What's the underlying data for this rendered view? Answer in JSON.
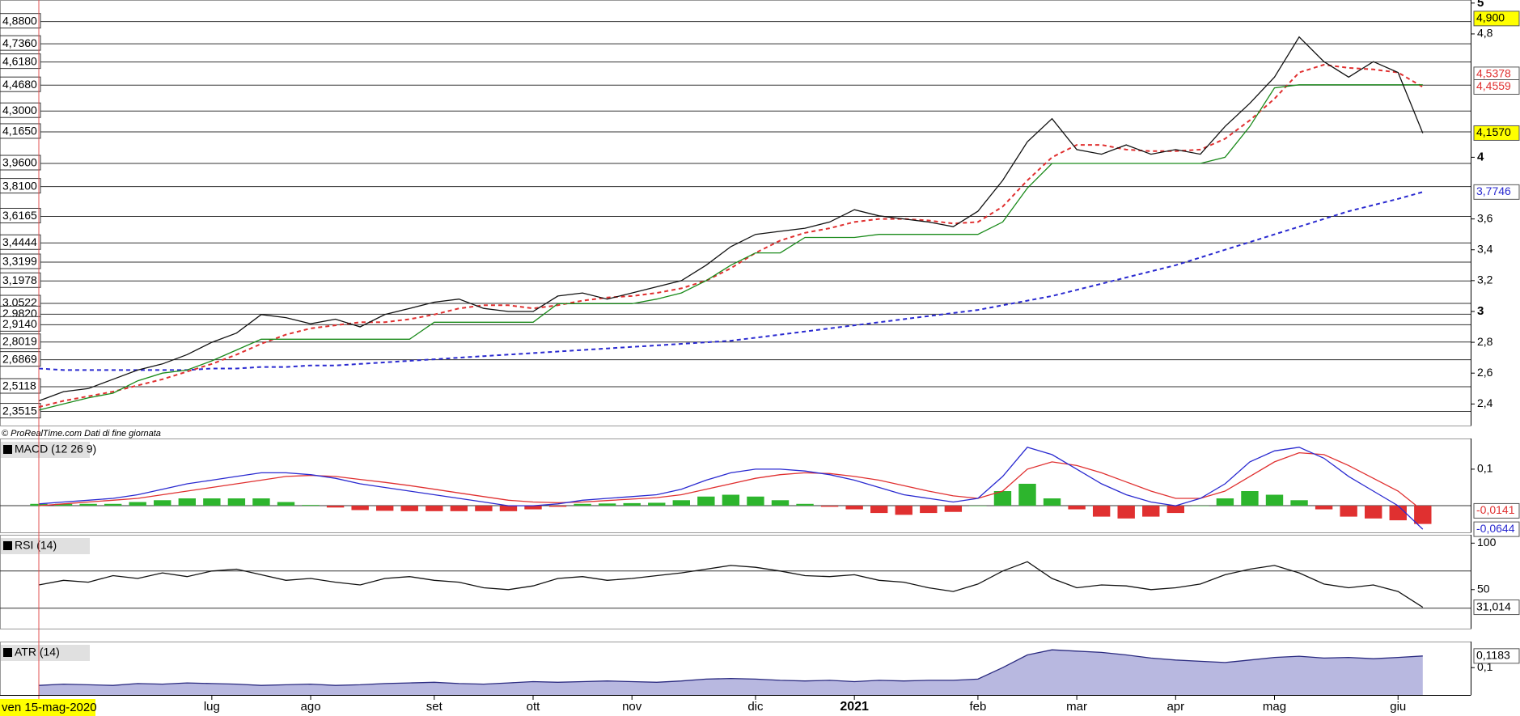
{
  "chart_data": [
    {
      "type": "line",
      "source": "© ProRealTime.com  Dati di fine giornata",
      "ylim": [
        2.26,
        5.02
      ],
      "yticks": [
        {
          "value": 2.4,
          "label": "2,4"
        },
        {
          "value": 2.6,
          "label": "2,6"
        },
        {
          "value": 2.8,
          "label": "2,8"
        },
        3,
        {
          "value": 3.2,
          "label": "3,2"
        },
        {
          "value": 3.4,
          "label": "3,4"
        },
        {
          "value": 3.6,
          "label": "3,6"
        },
        4,
        {
          "value": 4.8,
          "label": "4,8"
        },
        5
      ],
      "levels": [
        {
          "value": 4.88,
          "label": "4,8800"
        },
        {
          "value": 4.736,
          "label": "4,7360"
        },
        {
          "value": 4.618,
          "label": "4,6180"
        },
        {
          "value": 4.468,
          "label": "4,4680"
        },
        {
          "value": 4.3,
          "label": "4,3000"
        },
        {
          "value": 4.165,
          "label": "4,1650"
        },
        {
          "value": 3.96,
          "label": "3,9600"
        },
        {
          "value": 3.81,
          "label": "3,8100"
        },
        {
          "value": 3.6165,
          "label": "3,6165"
        },
        {
          "value": 3.4444,
          "label": "3,4444"
        },
        {
          "value": 3.3199,
          "label": "3,3199"
        },
        {
          "value": 3.1978,
          "label": "3,1978"
        },
        {
          "value": 3.0522,
          "label": "3,0522"
        },
        {
          "value": 2.982,
          "label": "2,9820"
        },
        {
          "value": 2.914,
          "label": "2,9140"
        },
        {
          "value": 2.8019,
          "label": "2,8019"
        },
        {
          "value": 2.6869,
          "label": "2,6869"
        },
        {
          "value": 2.5118,
          "label": "2,5118"
        },
        {
          "value": 2.3515,
          "label": "2,3515"
        }
      ],
      "tags": [
        {
          "value": 4.9,
          "label": "4,900",
          "color": "#000000",
          "background": "#ffff00"
        },
        {
          "value": 4.5378,
          "label": "4,5378",
          "color": "#e03030",
          "background": "#ffffff"
        },
        {
          "value": 4.4559,
          "label": "4,4559",
          "color": "#e03030",
          "background": "#ffffff"
        },
        {
          "value": 4.157,
          "label": "4,1570",
          "color": "#000000",
          "background": "#ffff00"
        },
        {
          "value": 3.7746,
          "label": "3,7746",
          "color": "#2a2ad0",
          "background": "#ffffff"
        }
      ],
      "series": [
        {
          "style": "dashed",
          "color": "#2a2ad0",
          "values": [
            2.63,
            2.62,
            2.62,
            2.62,
            2.62,
            2.62,
            2.62,
            2.63,
            2.63,
            2.64,
            2.64,
            2.65,
            2.65,
            2.66,
            2.67,
            2.68,
            2.69,
            2.7,
            2.71,
            2.72,
            2.73,
            2.74,
            2.75,
            2.76,
            2.77,
            2.78,
            2.79,
            2.8,
            2.81,
            2.83,
            2.85,
            2.87,
            2.89,
            2.91,
            2.93,
            2.95,
            2.97,
            2.99,
            3.01,
            3.04,
            3.07,
            3.1,
            3.14,
            3.18,
            3.22,
            3.26,
            3.3,
            3.35,
            3.4,
            3.45,
            3.5,
            3.55,
            3.6,
            3.65,
            3.69,
            3.73,
            3.7746
          ]
        },
        {
          "style": "dashed",
          "color": "#e03030",
          "values": [
            2.38,
            2.42,
            2.45,
            2.48,
            2.52,
            2.56,
            2.61,
            2.66,
            2.72,
            2.79,
            2.85,
            2.89,
            2.91,
            2.93,
            2.93,
            2.95,
            2.98,
            3.02,
            3.04,
            3.04,
            3.02,
            3.04,
            3.07,
            3.09,
            3.1,
            3.12,
            3.15,
            3.2,
            3.28,
            3.38,
            3.46,
            3.51,
            3.54,
            3.58,
            3.6,
            3.6,
            3.59,
            3.57,
            3.58,
            3.68,
            3.85,
            4.0,
            4.08,
            4.08,
            4.05,
            4.04,
            4.04,
            4.05,
            4.12,
            4.24,
            4.38,
            4.55,
            4.6,
            4.58,
            4.57,
            4.55,
            4.4559
          ]
        },
        {
          "style": "line",
          "color": "#1a8a1a",
          "values": [
            2.36,
            2.4,
            2.44,
            2.47,
            2.55,
            2.6,
            2.62,
            2.68,
            2.75,
            2.82,
            2.82,
            2.82,
            2.82,
            2.82,
            2.82,
            2.82,
            2.93,
            2.93,
            2.93,
            2.93,
            2.93,
            3.05,
            3.05,
            3.05,
            3.05,
            3.08,
            3.12,
            3.2,
            3.3,
            3.38,
            3.38,
            3.48,
            3.48,
            3.48,
            3.5,
            3.5,
            3.5,
            3.5,
            3.5,
            3.58,
            3.8,
            3.96,
            3.96,
            3.96,
            3.96,
            3.96,
            3.96,
            3.96,
            4.0,
            4.2,
            4.45,
            4.47,
            4.47,
            4.47,
            4.47,
            4.47,
            4.47
          ]
        },
        {
          "style": "line",
          "color": "#111111",
          "values": [
            2.42,
            2.48,
            2.5,
            2.56,
            2.62,
            2.66,
            2.72,
            2.8,
            2.86,
            2.98,
            2.96,
            2.92,
            2.95,
            2.9,
            2.98,
            3.02,
            3.06,
            3.08,
            3.02,
            3.0,
            3.0,
            3.1,
            3.12,
            3.08,
            3.12,
            3.16,
            3.2,
            3.3,
            3.42,
            3.5,
            3.52,
            3.54,
            3.58,
            3.66,
            3.62,
            3.6,
            3.58,
            3.55,
            3.65,
            3.85,
            4.1,
            4.25,
            4.05,
            4.02,
            4.08,
            4.02,
            4.05,
            4.02,
            4.2,
            4.35,
            4.52,
            4.78,
            4.62,
            4.52,
            4.62,
            4.55,
            4.157
          ]
        }
      ]
    },
    {
      "type": "line",
      "title": "MACD (12 26 9)",
      "ylim": [
        -0.073,
        0.184
      ],
      "yticks": [
        {
          "value": 0.1,
          "label": "0,1"
        }
      ],
      "levels": [
        {
          "value": 0
        }
      ],
      "tags": [
        {
          "value": -0.0141,
          "label": "-0,0141",
          "color": "#e03030",
          "background": "#ffffff"
        },
        {
          "value": -0.0644,
          "label": "-0,0644",
          "color": "#2a2ad0",
          "background": "#ffffff"
        }
      ],
      "series": [
        {
          "style": "histogram",
          "color": "#2db52d",
          "negative_color": "#e03030",
          "values": [
            0.005,
            0.005,
            0.005,
            0.005,
            0.01,
            0.015,
            0.02,
            0.02,
            0.02,
            0.02,
            0.01,
            0.002,
            -0.005,
            -0.012,
            -0.014,
            -0.015,
            -0.015,
            -0.015,
            -0.015,
            -0.015,
            -0.01,
            -0.003,
            0.005,
            0.006,
            0.007,
            0.008,
            0.015,
            0.025,
            0.03,
            0.025,
            0.015,
            0.005,
            -0.003,
            -0.01,
            -0.02,
            -0.025,
            -0.02,
            -0.017,
            0.0,
            0.04,
            0.06,
            0.02,
            -0.01,
            -0.03,
            -0.035,
            -0.03,
            -0.02,
            0.0,
            0.02,
            0.04,
            0.03,
            0.015,
            -0.01,
            -0.03,
            -0.035,
            -0.04,
            -0.05
          ]
        },
        {
          "style": "line",
          "color": "#e03030",
          "values": [
            0.0,
            0.005,
            0.01,
            0.015,
            0.02,
            0.03,
            0.04,
            0.05,
            0.06,
            0.07,
            0.08,
            0.083,
            0.08,
            0.072,
            0.064,
            0.055,
            0.045,
            0.035,
            0.025,
            0.015,
            0.01,
            0.008,
            0.01,
            0.014,
            0.018,
            0.022,
            0.03,
            0.045,
            0.06,
            0.075,
            0.085,
            0.09,
            0.088,
            0.08,
            0.07,
            0.055,
            0.04,
            0.027,
            0.02,
            0.04,
            0.1,
            0.12,
            0.11,
            0.09,
            0.065,
            0.04,
            0.02,
            0.02,
            0.04,
            0.08,
            0.12,
            0.145,
            0.14,
            0.11,
            0.075,
            0.04,
            -0.0141
          ]
        },
        {
          "style": "line",
          "color": "#2a2ad0",
          "values": [
            0.005,
            0.01,
            0.015,
            0.02,
            0.03,
            0.045,
            0.06,
            0.07,
            0.08,
            0.09,
            0.09,
            0.085,
            0.075,
            0.06,
            0.05,
            0.04,
            0.03,
            0.02,
            0.01,
            0.0,
            0.0,
            0.005,
            0.015,
            0.02,
            0.025,
            0.03,
            0.045,
            0.07,
            0.09,
            0.1,
            0.1,
            0.095,
            0.085,
            0.07,
            0.05,
            0.03,
            0.02,
            0.01,
            0.02,
            0.08,
            0.16,
            0.14,
            0.1,
            0.06,
            0.03,
            0.01,
            0.0,
            0.02,
            0.06,
            0.12,
            0.15,
            0.16,
            0.13,
            0.08,
            0.04,
            0.0,
            -0.0644
          ]
        }
      ]
    },
    {
      "type": "line",
      "title": "RSI (14)",
      "ylim": [
        8,
        109
      ],
      "yticks": [
        100,
        50
      ],
      "levels": [
        {
          "value": 70
        },
        {
          "value": 30
        }
      ],
      "tags": [
        {
          "value": 31.014,
          "label": "31,014",
          "color": "#000000",
          "background": "#ffffff"
        }
      ],
      "series": [
        {
          "style": "line",
          "color": "#111111",
          "values": [
            55,
            60,
            58,
            65,
            62,
            68,
            64,
            70,
            72,
            66,
            60,
            62,
            58,
            55,
            62,
            64,
            60,
            58,
            52,
            50,
            54,
            62,
            64,
            60,
            62,
            65,
            68,
            72,
            76,
            74,
            70,
            65,
            64,
            66,
            60,
            58,
            52,
            48,
            56,
            70,
            80,
            62,
            52,
            55,
            54,
            50,
            52,
            56,
            66,
            72,
            76,
            68,
            56,
            52,
            55,
            48,
            31.014
          ]
        }
      ]
    },
    {
      "type": "area",
      "title": "ATR (14)",
      "ylim": [
        0.057,
        0.141
      ],
      "yticks": [
        {
          "value": 0.1,
          "label": "0,1"
        }
      ],
      "tags": [
        {
          "value": 0.1183,
          "label": "0,1183",
          "color": "#000000",
          "background": "#ffffff"
        }
      ],
      "date_label": "ven 15-mag-2020",
      "categories": [
        null,
        null,
        null,
        null,
        null,
        null,
        null,
        "lug",
        null,
        null,
        null,
        "ago",
        null,
        null,
        null,
        null,
        "set",
        null,
        null,
        null,
        "ott",
        null,
        null,
        null,
        "nov",
        null,
        null,
        null,
        null,
        "dic",
        null,
        null,
        null,
        "2021",
        null,
        null,
        null,
        null,
        "feb",
        null,
        null,
        null,
        "mar",
        null,
        null,
        null,
        "apr",
        null,
        null,
        null,
        "mag",
        null,
        null,
        null,
        null,
        "giu",
        null
      ],
      "series": [
        {
          "style": "area",
          "color": "#2a2a80",
          "fill": "#b8b8e0",
          "values": [
            0.072,
            0.074,
            0.073,
            0.072,
            0.075,
            0.074,
            0.076,
            0.075,
            0.074,
            0.072,
            0.073,
            0.074,
            0.072,
            0.073,
            0.075,
            0.076,
            0.077,
            0.075,
            0.074,
            0.076,
            0.078,
            0.077,
            0.078,
            0.079,
            0.078,
            0.077,
            0.079,
            0.082,
            0.083,
            0.082,
            0.08,
            0.079,
            0.08,
            0.078,
            0.08,
            0.079,
            0.08,
            0.08,
            0.082,
            0.1,
            0.12,
            0.128,
            0.126,
            0.124,
            0.12,
            0.115,
            0.112,
            0.11,
            0.108,
            0.112,
            0.116,
            0.118,
            0.115,
            0.116,
            0.114,
            0.116,
            0.1183
          ]
        }
      ]
    }
  ]
}
